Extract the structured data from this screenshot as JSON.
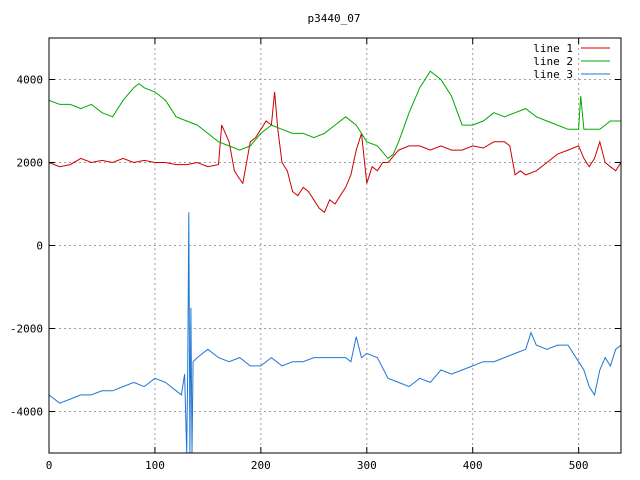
{
  "chart_data": {
    "type": "line",
    "title": "p3440_07",
    "xlabel": "",
    "ylabel": "",
    "xlim": [
      0,
      540
    ],
    "ylim": [
      -5000,
      5000
    ],
    "xticks": [
      0,
      100,
      200,
      300,
      400,
      500
    ],
    "yticks": [
      -4000,
      -2000,
      0,
      2000,
      4000
    ],
    "grid": true,
    "legend_position": "top-right",
    "series": [
      {
        "name": "line 1",
        "color": "#cc0000",
        "x": [
          0,
          10,
          20,
          30,
          40,
          50,
          60,
          70,
          80,
          90,
          100,
          110,
          120,
          130,
          140,
          150,
          160,
          163,
          170,
          175,
          180,
          183,
          190,
          195,
          200,
          205,
          210,
          213,
          216,
          220,
          225,
          230,
          235,
          240,
          245,
          250,
          255,
          260,
          265,
          270,
          275,
          280,
          285,
          290,
          295,
          300,
          305,
          310,
          315,
          320,
          330,
          340,
          350,
          360,
          370,
          380,
          390,
          400,
          410,
          420,
          430,
          435,
          440,
          445,
          450,
          460,
          470,
          480,
          490,
          500,
          505,
          510,
          515,
          520,
          525,
          530,
          535,
          540
        ],
        "values": [
          2000,
          1900,
          1950,
          2100,
          2000,
          2050,
          2000,
          2100,
          2000,
          2050,
          2000,
          2000,
          1950,
          1950,
          2000,
          1900,
          1950,
          2900,
          2500,
          1800,
          1600,
          1500,
          2500,
          2600,
          2800,
          3000,
          2900,
          3700,
          2800,
          2000,
          1800,
          1300,
          1200,
          1400,
          1300,
          1100,
          900,
          800,
          1100,
          1000,
          1200,
          1400,
          1700,
          2300,
          2700,
          1500,
          1900,
          1800,
          2000,
          2000,
          2300,
          2400,
          2400,
          2300,
          2400,
          2300,
          2300,
          2400,
          2350,
          2500,
          2500,
          2400,
          1700,
          1800,
          1700,
          1800,
          2000,
          2200,
          2300,
          2400,
          2100,
          1900,
          2100,
          2500,
          2000,
          1900,
          1800,
          2000
        ]
      },
      {
        "name": "line 2",
        "color": "#00aa00",
        "x": [
          0,
          10,
          20,
          30,
          40,
          50,
          60,
          70,
          80,
          85,
          90,
          100,
          110,
          120,
          130,
          140,
          150,
          160,
          170,
          180,
          190,
          200,
          210,
          220,
          230,
          240,
          250,
          260,
          270,
          280,
          290,
          300,
          310,
          320,
          325,
          330,
          340,
          350,
          360,
          370,
          380,
          390,
          400,
          410,
          420,
          430,
          440,
          450,
          460,
          470,
          480,
          490,
          500,
          502,
          505,
          510,
          520,
          530,
          540
        ],
        "values": [
          3500,
          3400,
          3400,
          3300,
          3400,
          3200,
          3100,
          3500,
          3800,
          3900,
          3800,
          3700,
          3500,
          3100,
          3000,
          2900,
          2700,
          2500,
          2400,
          2300,
          2400,
          2700,
          2900,
          2800,
          2700,
          2700,
          2600,
          2700,
          2900,
          3100,
          2900,
          2500,
          2400,
          2100,
          2200,
          2500,
          3200,
          3800,
          4200,
          4000,
          3600,
          2900,
          2900,
          3000,
          3200,
          3100,
          3200,
          3300,
          3100,
          3000,
          2900,
          2800,
          2800,
          3600,
          2800,
          2800,
          2800,
          3000,
          3000
        ]
      },
      {
        "name": "line 3",
        "color": "#1f77d4",
        "x": [
          0,
          10,
          20,
          30,
          40,
          50,
          60,
          70,
          80,
          90,
          100,
          110,
          120,
          125,
          128,
          130,
          131,
          132,
          133,
          134,
          135,
          136,
          140,
          145,
          150,
          160,
          170,
          180,
          190,
          200,
          210,
          220,
          230,
          240,
          250,
          260,
          270,
          280,
          285,
          290,
          295,
          300,
          310,
          320,
          330,
          340,
          350,
          360,
          370,
          380,
          390,
          400,
          410,
          420,
          430,
          440,
          450,
          455,
          460,
          470,
          480,
          490,
          500,
          505,
          510,
          515,
          520,
          525,
          530,
          535,
          540
        ],
        "values": [
          -3600,
          -3800,
          -3700,
          -3600,
          -3600,
          -3500,
          -3500,
          -3400,
          -3300,
          -3400,
          -3200,
          -3300,
          -3500,
          -3600,
          -3100,
          -5000,
          -2800,
          800,
          -5000,
          -1500,
          -5000,
          -2800,
          -2700,
          -2600,
          -2500,
          -2700,
          -2800,
          -2700,
          -2900,
          -2900,
          -2700,
          -2900,
          -2800,
          -2800,
          -2700,
          -2700,
          -2700,
          -2700,
          -2800,
          -2200,
          -2700,
          -2600,
          -2700,
          -3200,
          -3300,
          -3400,
          -3200,
          -3300,
          -3000,
          -3100,
          -3000,
          -2900,
          -2800,
          -2800,
          -2700,
          -2600,
          -2500,
          -2100,
          -2400,
          -2500,
          -2400,
          -2400,
          -2800,
          -3000,
          -3400,
          -3600,
          -3000,
          -2700,
          -2900,
          -2500,
          -2400
        ]
      }
    ]
  }
}
